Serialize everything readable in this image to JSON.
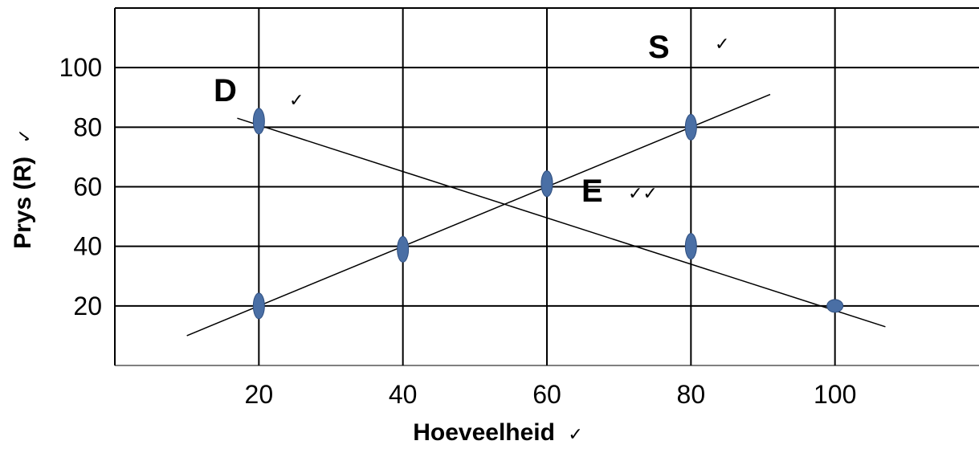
{
  "chart_data": {
    "type": "line",
    "xlabel": "Hoeveelheid",
    "xlabel_mark": "✓",
    "ylabel": "Prys (R)",
    "ylabel_mark": "✓",
    "xlim": [
      0,
      120
    ],
    "ylim": [
      0,
      120
    ],
    "x_ticks": [
      20,
      40,
      60,
      80,
      100
    ],
    "y_ticks": [
      20,
      40,
      60,
      80,
      100
    ],
    "grid": true,
    "series": [
      {
        "name": "D",
        "mark": "✓",
        "line": [
          [
            17,
            83
          ],
          [
            107,
            13
          ]
        ],
        "points": [
          [
            20,
            82
          ],
          [
            60,
            61
          ],
          [
            80,
            40
          ],
          [
            100,
            20
          ]
        ]
      },
      {
        "name": "S",
        "mark": "✓",
        "line": [
          [
            10,
            10
          ],
          [
            91,
            91
          ]
        ],
        "points": [
          [
            20,
            20
          ],
          [
            40,
            39
          ],
          [
            60,
            61
          ],
          [
            80,
            80
          ]
        ]
      }
    ],
    "annotations": [
      {
        "text": "E",
        "mark": "✓✓",
        "x": 60,
        "y": 60
      }
    ],
    "colors": {
      "point": "#4a6fa5",
      "point_edge": "#2f4f80",
      "line": "#000000",
      "grid": "#000000"
    }
  }
}
